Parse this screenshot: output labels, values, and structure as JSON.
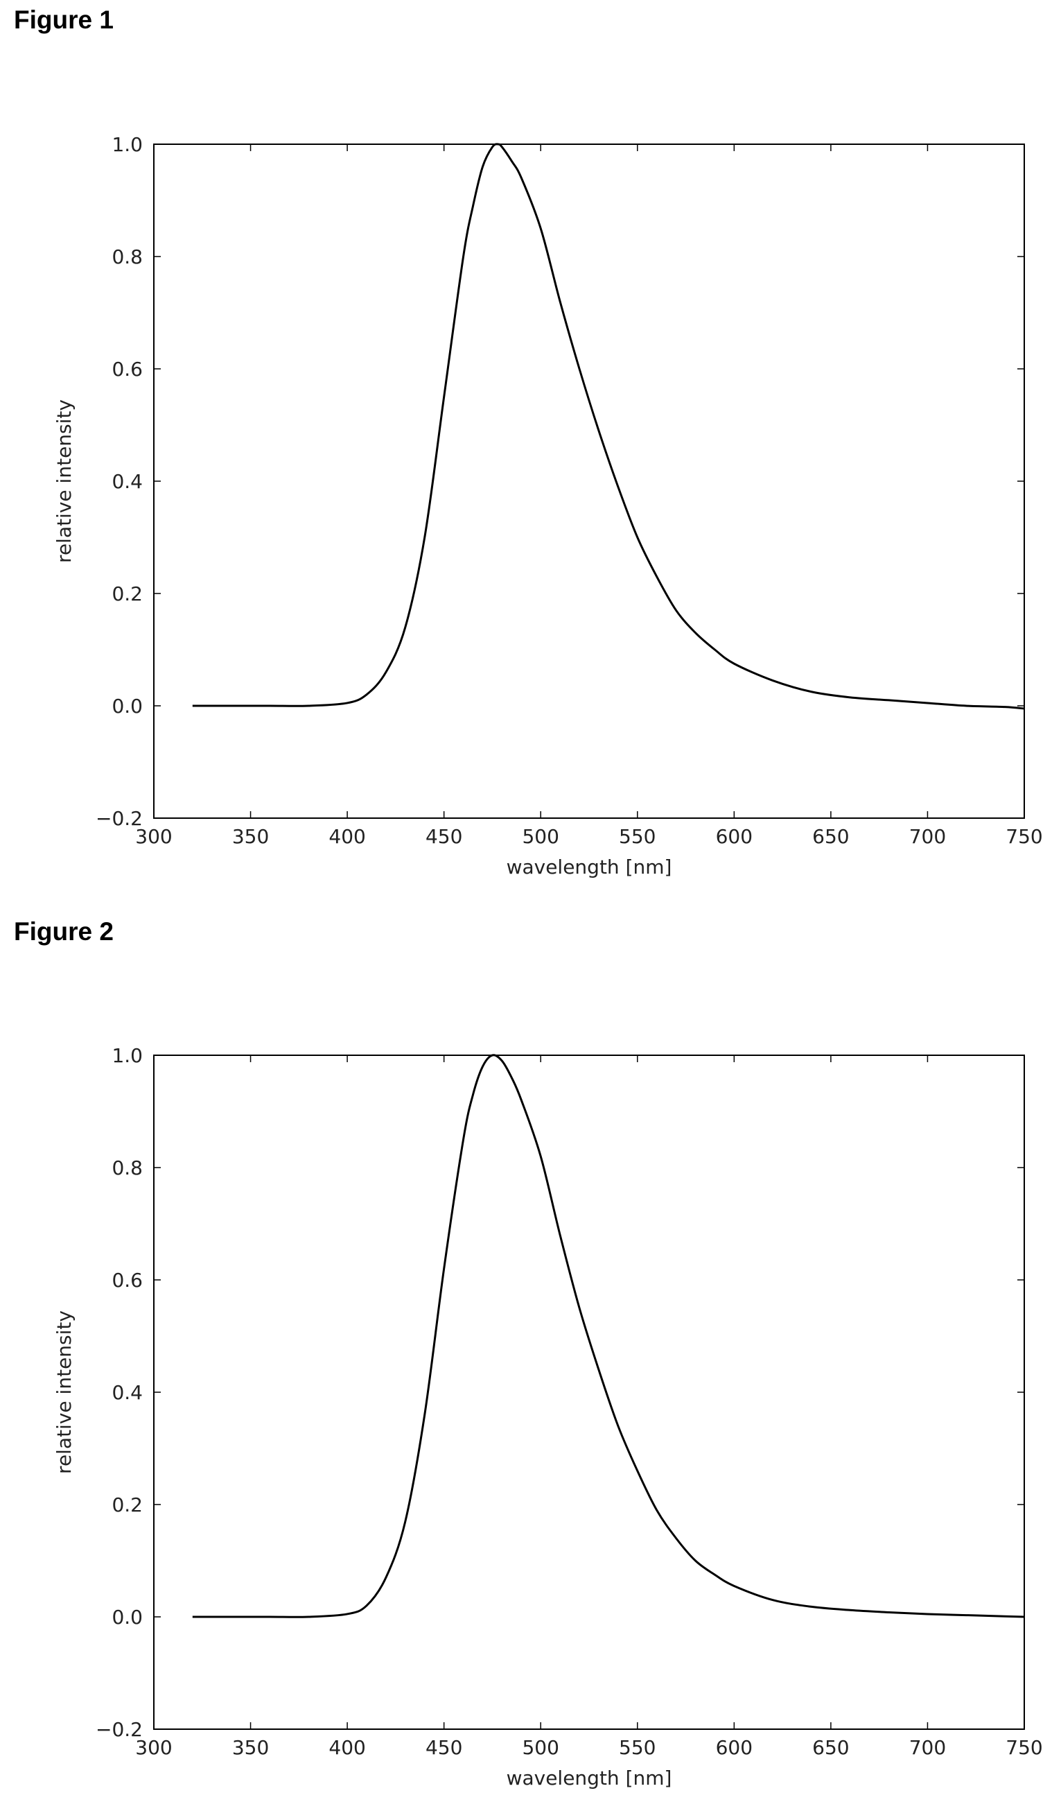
{
  "figures": [
    {
      "label": "Figure 1"
    },
    {
      "label": "Figure 2"
    }
  ],
  "chart_data": [
    {
      "type": "line",
      "title": "",
      "xlabel": "wavelength [nm]",
      "ylabel": "relative intensity",
      "xlim": [
        300,
        750
      ],
      "ylim": [
        -0.2,
        1.0
      ],
      "xticks": [
        300,
        350,
        400,
        450,
        500,
        550,
        600,
        650,
        700,
        750
      ],
      "yticks": [
        -0.2,
        0.0,
        0.2,
        0.4,
        0.6,
        0.8,
        1.0
      ],
      "grid": false,
      "series": [
        {
          "x": [
            320,
            340,
            360,
            380,
            400,
            410,
            420,
            430,
            440,
            450,
            460,
            465,
            470,
            475,
            478,
            480,
            485,
            490,
            500,
            510,
            520,
            530,
            540,
            550,
            560,
            570,
            580,
            590,
            600,
            620,
            640,
            660,
            680,
            700,
            720,
            740,
            750
          ],
          "y": [
            0.0,
            0.0,
            0.0,
            0.0,
            0.005,
            0.02,
            0.06,
            0.14,
            0.3,
            0.55,
            0.8,
            0.89,
            0.96,
            0.995,
            1.0,
            0.995,
            0.97,
            0.94,
            0.85,
            0.72,
            0.6,
            0.49,
            0.39,
            0.3,
            0.23,
            0.17,
            0.13,
            0.1,
            0.075,
            0.045,
            0.025,
            0.015,
            0.01,
            0.005,
            0.0,
            -0.002,
            -0.005
          ],
          "color": "#000000"
        }
      ]
    },
    {
      "type": "line",
      "title": "",
      "xlabel": "wavelength [nm]",
      "ylabel": "relative intensity",
      "xlim": [
        300,
        750
      ],
      "ylim": [
        -0.2,
        1.0
      ],
      "xticks": [
        300,
        350,
        400,
        450,
        500,
        550,
        600,
        650,
        700,
        750
      ],
      "yticks": [
        -0.2,
        0.0,
        0.2,
        0.4,
        0.6,
        0.8,
        1.0
      ],
      "grid": false,
      "series": [
        {
          "x": [
            320,
            340,
            360,
            380,
            400,
            410,
            420,
            430,
            440,
            450,
            460,
            465,
            470,
            475,
            480,
            485,
            490,
            500,
            510,
            520,
            530,
            540,
            550,
            560,
            570,
            580,
            590,
            600,
            620,
            640,
            660,
            680,
            700,
            720,
            740,
            750
          ],
          "y": [
            0.0,
            0.0,
            0.0,
            0.0,
            0.005,
            0.02,
            0.07,
            0.17,
            0.36,
            0.62,
            0.85,
            0.93,
            0.98,
            1.0,
            0.99,
            0.96,
            0.92,
            0.82,
            0.68,
            0.55,
            0.44,
            0.34,
            0.26,
            0.19,
            0.14,
            0.1,
            0.075,
            0.055,
            0.03,
            0.018,
            0.012,
            0.008,
            0.005,
            0.003,
            0.001,
            0.0
          ],
          "color": "#000000"
        }
      ]
    }
  ]
}
